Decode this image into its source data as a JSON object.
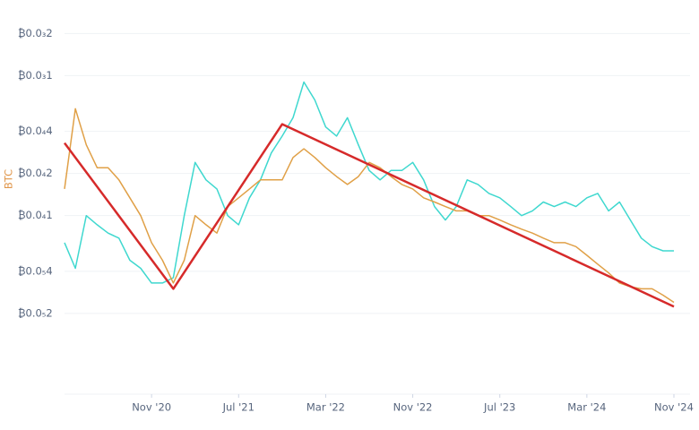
{
  "chart_data": {
    "type": "line",
    "y_label": "BTC",
    "y_label_color": "#e0964a",
    "log_scale": true,
    "grid": true,
    "x": [
      "2020-03",
      "2020-04",
      "2020-05",
      "2020-06",
      "2020-07",
      "2020-08",
      "2020-09",
      "2020-10",
      "2020-11",
      "2020-12",
      "2021-01",
      "2021-02",
      "2021-03",
      "2021-04",
      "2021-05",
      "2021-06",
      "2021-07",
      "2021-08",
      "2021-09",
      "2021-10",
      "2021-11",
      "2021-12",
      "2022-01",
      "2022-02",
      "2022-03",
      "2022-04",
      "2022-05",
      "2022-06",
      "2022-07",
      "2022-08",
      "2022-09",
      "2022-10",
      "2022-11",
      "2022-12",
      "2023-01",
      "2023-02",
      "2023-03",
      "2023-04",
      "2023-05",
      "2023-06",
      "2023-07",
      "2023-08",
      "2023-09",
      "2023-10",
      "2023-11",
      "2023-12",
      "2024-01",
      "2024-02",
      "2024-03",
      "2024-04",
      "2024-05",
      "2024-06",
      "2024-07",
      "2024-08",
      "2024-09",
      "2024-10",
      "2024-11"
    ],
    "xlim": [
      "2020-03",
      "2024-11"
    ],
    "xticks": [
      {
        "value": "2020-11",
        "label": "Nov '20"
      },
      {
        "value": "2021-07",
        "label": "Jul '21"
      },
      {
        "value": "2022-03",
        "label": "Mar '22"
      },
      {
        "value": "2022-11",
        "label": "Nov '22"
      },
      {
        "value": "2023-07",
        "label": "Jul '23"
      },
      {
        "value": "2024-03",
        "label": "Mar '24"
      },
      {
        "value": "2024-11",
        "label": "Nov '24"
      }
    ],
    "ylim": [
      5.3e-07,
      0.00024
    ],
    "yticks": [
      {
        "value": 0.0002,
        "label": "₿0.0₃2"
      },
      {
        "value": 0.0001,
        "label": "₿0.0₃1"
      },
      {
        "value": 4e-05,
        "label": "₿0.0₄4"
      },
      {
        "value": 2e-05,
        "label": "₿0.0₄2"
      },
      {
        "value": 1e-05,
        "label": "₿0.0₄1"
      },
      {
        "value": 4e-06,
        "label": "₿0.0₅4"
      },
      {
        "value": 2e-06,
        "label": "₿0.0₅2"
      }
    ],
    "series": [
      {
        "color": "#3fd8cf",
        "values": [
          6.4e-06,
          4.2e-06,
          1e-05,
          8.6e-06,
          7.5e-06,
          6.9e-06,
          4.8e-06,
          4.2e-06,
          3.3e-06,
          3.3e-06,
          3.6e-06,
          1e-05,
          2.4e-05,
          1.8e-05,
          1.55e-05,
          1e-05,
          8.6e-06,
          1.34e-05,
          1.8e-05,
          2.8e-05,
          3.7e-05,
          5e-05,
          9e-05,
          6.7e-05,
          4.3e-05,
          3.7e-05,
          5e-05,
          3.2e-05,
          2.1e-05,
          1.8e-05,
          2.1e-05,
          2.1e-05,
          2.4e-05,
          1.8e-05,
          1.16e-05,
          9.3e-06,
          1.16e-05,
          1.8e-05,
          1.67e-05,
          1.44e-05,
          1.34e-05,
          1.16e-05,
          1e-05,
          1.08e-05,
          1.25e-05,
          1.16e-05,
          1.25e-05,
          1.16e-05,
          1.34e-05,
          1.44e-05,
          1.08e-05,
          1.25e-05,
          9.3e-06,
          6.9e-06,
          6e-06,
          5.6e-06,
          5.6e-06
        ]
      },
      {
        "color": "#e0a047",
        "values": [
          1.55e-05,
          5.8e-05,
          3.2e-05,
          2.2e-05,
          2.2e-05,
          1.8e-05,
          1.34e-05,
          1e-05,
          6.4e-06,
          4.8e-06,
          3.3e-06,
          4.8e-06,
          1e-05,
          8.6e-06,
          7.5e-06,
          1.16e-05,
          1.34e-05,
          1.55e-05,
          1.8e-05,
          1.8e-05,
          1.8e-05,
          2.6e-05,
          3e-05,
          2.6e-05,
          2.2e-05,
          1.9e-05,
          1.67e-05,
          1.9e-05,
          2.4e-05,
          2.2e-05,
          1.9e-05,
          1.67e-05,
          1.55e-05,
          1.34e-05,
          1.25e-05,
          1.16e-05,
          1.08e-05,
          1.08e-05,
          1e-05,
          1e-05,
          9.3e-06,
          8.6e-06,
          8e-06,
          7.5e-06,
          6.9e-06,
          6.4e-06,
          6.4e-06,
          6e-06,
          5.2e-06,
          4.5e-06,
          3.9e-06,
          3.3e-06,
          3.1e-06,
          3e-06,
          3e-06,
          2.7e-06,
          2.4e-06
        ]
      }
    ],
    "trendline": {
      "color": "#d62a2a",
      "x": [
        "2020-03",
        "2021-01",
        "2021-11",
        "2024-11"
      ],
      "values": [
        3.3e-05,
        3e-06,
        4.5e-05,
        2.24e-06
      ]
    }
  }
}
